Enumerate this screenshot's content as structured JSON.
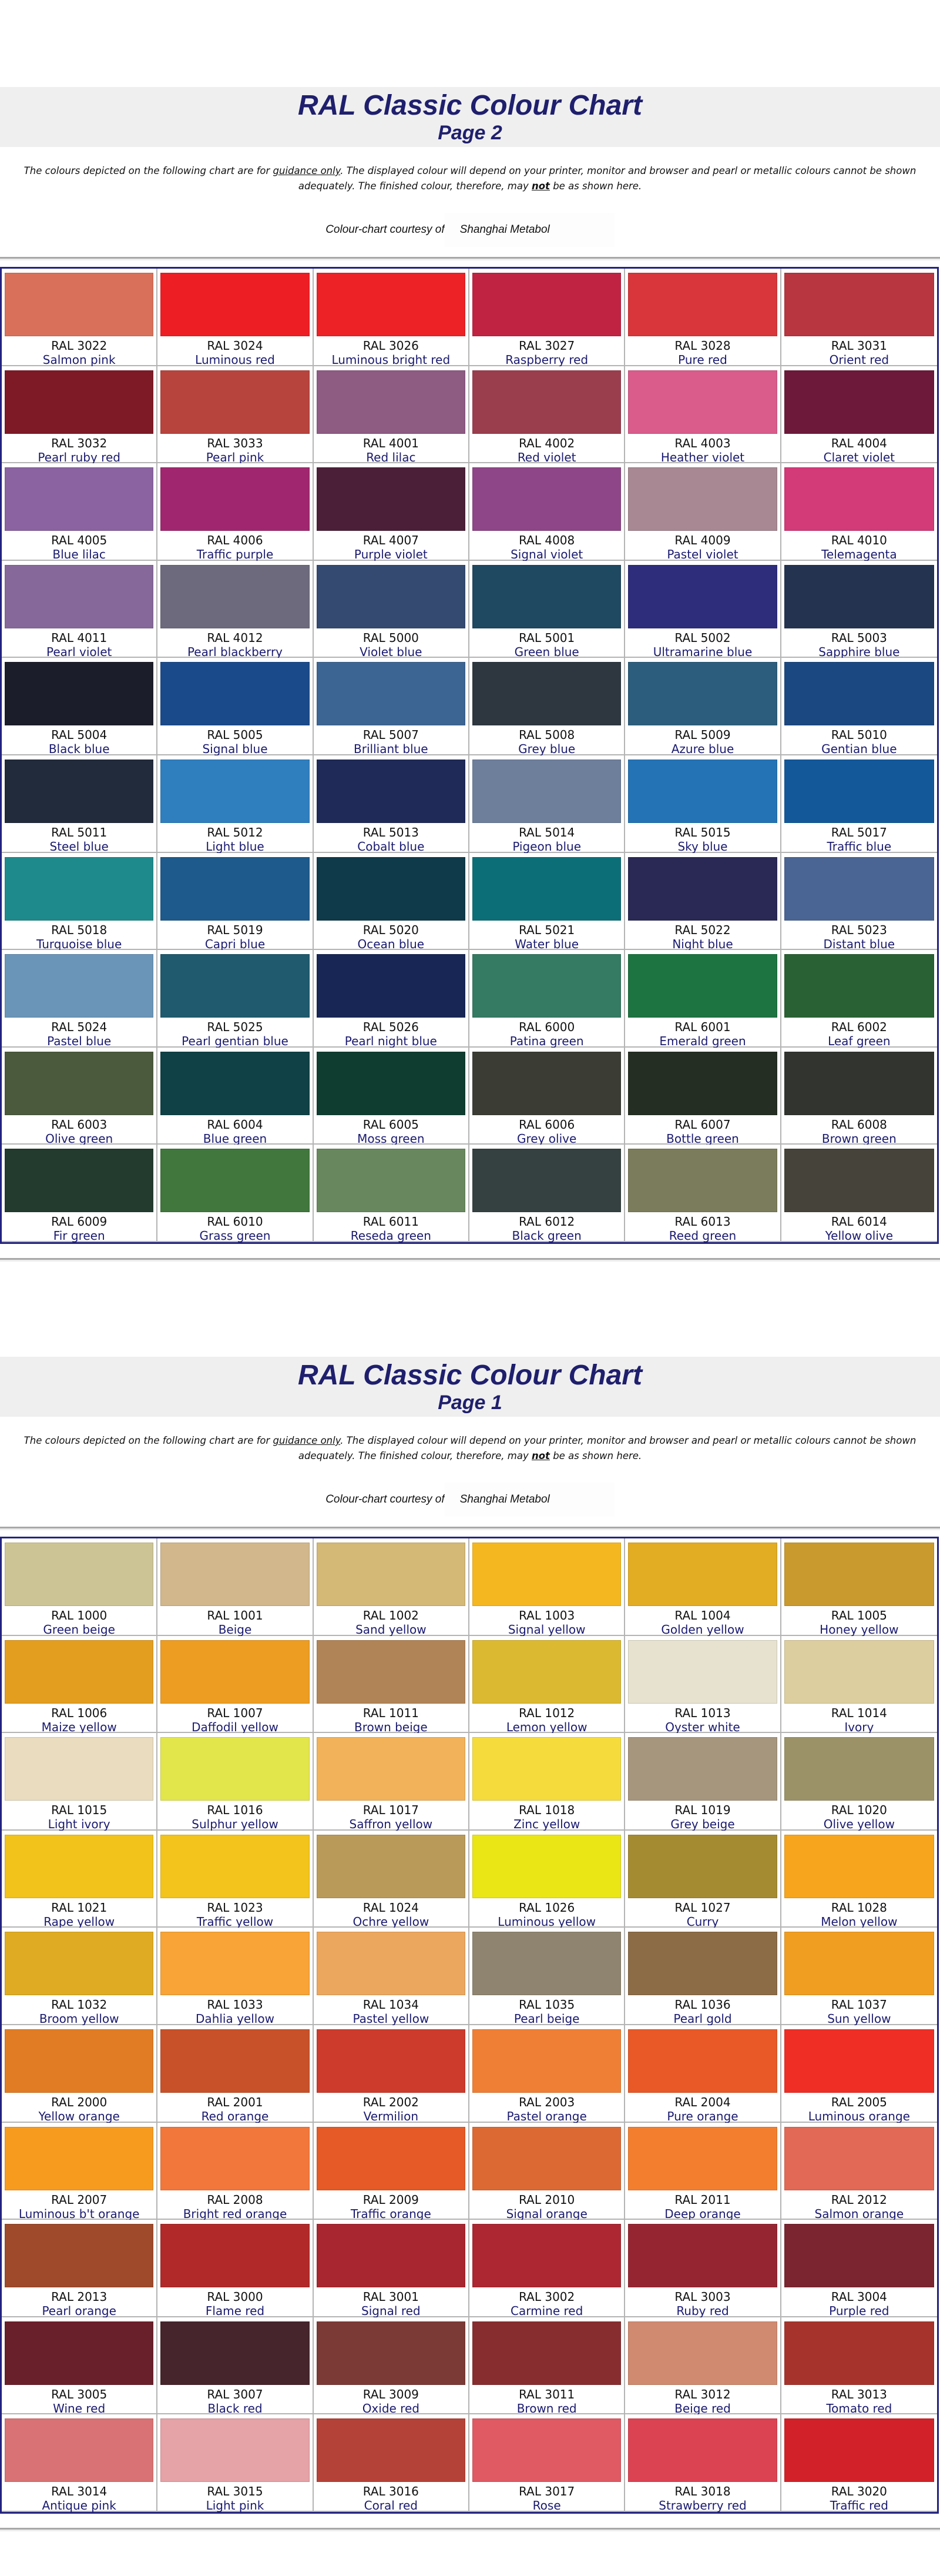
{
  "sections": [
    {
      "title": "RAL Classic Colour Chart",
      "page": "Page 2",
      "disclaimer": {
        "part1": "The colours depicted on the following chart are for ",
        "underlined": "guidance only",
        "part2": ". The displayed colour will depend on your printer, monitor and browser and pearl or metallic colours cannot be shown adequately. The finished colour, therefore, may ",
        "emphasis": "not",
        "part3": " be as shown here."
      },
      "courtesy_label": "Colour-chart courtesy of",
      "courtesy_company": "Shanghai Metabol",
      "colours": [
        {
          "code": "RAL 3022",
          "name": "Salmon pink",
          "hex": "#d9705a"
        },
        {
          "code": "RAL 3024",
          "name": "Luminous red",
          "hex": "#ee1e25"
        },
        {
          "code": "RAL 3026",
          "name": "Luminous bright red",
          "hex": "#ec2226"
        },
        {
          "code": "RAL 3027",
          "name": "Raspberry red",
          "hex": "#c02342"
        },
        {
          "code": "RAL 3028",
          "name": "Pure red",
          "hex": "#d8363a"
        },
        {
          "code": "RAL 3031",
          "name": "Orient red",
          "hex": "#b73640"
        },
        {
          "code": "RAL 3032",
          "name": "Pearl ruby red",
          "hex": "#7e1a26"
        },
        {
          "code": "RAL 3033",
          "name": "Pearl pink",
          "hex": "#b8443e"
        },
        {
          "code": "RAL 4001",
          "name": "Red lilac",
          "hex": "#8e5b83"
        },
        {
          "code": "RAL 4002",
          "name": "Red violet",
          "hex": "#9a3e4e"
        },
        {
          "code": "RAL 4003",
          "name": "Heather violet",
          "hex": "#d95c8a"
        },
        {
          "code": "RAL 4004",
          "name": "Claret violet",
          "hex": "#6d1a3a"
        },
        {
          "code": "RAL 4005",
          "name": "Blue lilac",
          "hex": "#8b63a0"
        },
        {
          "code": "RAL 4006",
          "name": "Traffic purple",
          "hex": "#a0276f"
        },
        {
          "code": "RAL 4007",
          "name": "Purple violet",
          "hex": "#4c1f38"
        },
        {
          "code": "RAL 4008",
          "name": "Signal violet",
          "hex": "#8f4688"
        },
        {
          "code": "RAL 4009",
          "name": "Pastel violet",
          "hex": "#a78893"
        },
        {
          "code": "RAL 4010",
          "name": "Telemagenta",
          "hex": "#d23a78"
        },
        {
          "code": "RAL 4011",
          "name": "Pearl violet",
          "hex": "#86689a"
        },
        {
          "code": "RAL 4012",
          "name": "Pearl blackberry",
          "hex": "#6c6a7c"
        },
        {
          "code": "RAL 5000",
          "name": "Violet blue",
          "hex": "#344a70"
        },
        {
          "code": "RAL 5001",
          "name": "Green blue",
          "hex": "#1f4861"
        },
        {
          "code": "RAL 5002",
          "name": "Ultramarine blue",
          "hex": "#2e2d7c"
        },
        {
          "code": "RAL 5003",
          "name": "Sapphire blue",
          "hex": "#243350"
        },
        {
          "code": "RAL 5004",
          "name": "Black blue",
          "hex": "#1c1d2a"
        },
        {
          "code": "RAL 5005",
          "name": "Signal blue",
          "hex": "#1b4a8a"
        },
        {
          "code": "RAL 5007",
          "name": "Brilliant blue",
          "hex": "#3d6593"
        },
        {
          "code": "RAL 5008",
          "name": "Grey blue",
          "hex": "#2e3740"
        },
        {
          "code": "RAL 5009",
          "name": "Azure blue",
          "hex": "#2c5d7c"
        },
        {
          "code": "RAL 5010",
          "name": "Gentian blue",
          "hex": "#1c4882"
        },
        {
          "code": "RAL 5011",
          "name": "Steel blue",
          "hex": "#222b3c"
        },
        {
          "code": "RAL 5012",
          "name": "Light blue",
          "hex": "#2f7fbf"
        },
        {
          "code": "RAL 5013",
          "name": "Cobalt blue",
          "hex": "#1f2a58"
        },
        {
          "code": "RAL 5014",
          "name": "Pigeon blue",
          "hex": "#6d7f9b"
        },
        {
          "code": "RAL 5015",
          "name": "Sky blue",
          "hex": "#2473b5"
        },
        {
          "code": "RAL 5017",
          "name": "Traffic blue",
          "hex": "#13599a"
        },
        {
          "code": "RAL 5018",
          "name": "Turquoise blue",
          "hex": "#1f8a8c"
        },
        {
          "code": "RAL 5019",
          "name": "Capri blue",
          "hex": "#1e5a8b"
        },
        {
          "code": "RAL 5020",
          "name": "Ocean blue",
          "hex": "#0f3a4a"
        },
        {
          "code": "RAL 5021",
          "name": "Water blue",
          "hex": "#0c6f78"
        },
        {
          "code": "RAL 5022",
          "name": "Night blue",
          "hex": "#2a2955"
        },
        {
          "code": "RAL 5023",
          "name": "Distant blue",
          "hex": "#4a6593"
        },
        {
          "code": "RAL 5024",
          "name": "Pastel blue",
          "hex": "#6a95b8"
        },
        {
          "code": "RAL 5025",
          "name": "Pearl gentian blue",
          "hex": "#1f5a6e"
        },
        {
          "code": "RAL 5026",
          "name": "Pearl night blue",
          "hex": "#172655"
        },
        {
          "code": "RAL 6000",
          "name": "Patina green",
          "hex": "#357a62"
        },
        {
          "code": "RAL 6001",
          "name": "Emerald green",
          "hex": "#1d7440"
        },
        {
          "code": "RAL 6002",
          "name": "Leaf green",
          "hex": "#2a6134"
        },
        {
          "code": "RAL 6003",
          "name": "Olive green",
          "hex": "#4b5a3d"
        },
        {
          "code": "RAL 6004",
          "name": "Blue green",
          "hex": "#0f4146"
        },
        {
          "code": "RAL 6005",
          "name": "Moss green",
          "hex": "#0f3e30"
        },
        {
          "code": "RAL 6006",
          "name": "Grey olive",
          "hex": "#3b3d35"
        },
        {
          "code": "RAL 6007",
          "name": "Bottle green",
          "hex": "#252e22"
        },
        {
          "code": "RAL 6008",
          "name": "Brown green",
          "hex": "#32352f"
        },
        {
          "code": "RAL 6009",
          "name": "Fir green",
          "hex": "#233b2e"
        },
        {
          "code": "RAL 6010",
          "name": "Grass green",
          "hex": "#41773d"
        },
        {
          "code": "RAL 6011",
          "name": "Reseda green",
          "hex": "#68875e"
        },
        {
          "code": "RAL 6012",
          "name": "Black green",
          "hex": "#354140"
        },
        {
          "code": "RAL 6013",
          "name": "Reed green",
          "hex": "#7b7c5b"
        },
        {
          "code": "RAL 6014",
          "name": "Yellow olive",
          "hex": "#46443a"
        }
      ]
    },
    {
      "title": "RAL Classic Colour Chart",
      "page": "Page 1",
      "disclaimer": {
        "part1": "The colours depicted on the following chart are for ",
        "underlined": "guidance only",
        "part2": ". The displayed colour will depend on your printer, monitor and browser and pearl or metallic colours cannot be shown adequately. The finished colour, therefore, may ",
        "emphasis": "not",
        "part3": " be as shown here."
      },
      "courtesy_label": "Colour-chart courtesy of",
      "courtesy_company": "Shanghai Metabol",
      "colours": [
        {
          "code": "RAL 1000",
          "name": "Green beige",
          "hex": "#cdc495"
        },
        {
          "code": "RAL 1001",
          "name": "Beige",
          "hex": "#d1b78b"
        },
        {
          "code": "RAL 1002",
          "name": "Sand yellow",
          "hex": "#d3b876"
        },
        {
          "code": "RAL 1003",
          "name": "Signal yellow",
          "hex": "#f5b71f"
        },
        {
          "code": "RAL 1004",
          "name": "Golden yellow",
          "hex": "#e2ac23"
        },
        {
          "code": "RAL 1005",
          "name": "Honey yellow",
          "hex": "#c99a2e"
        },
        {
          "code": "RAL 1006",
          "name": "Maize yellow",
          "hex": "#e39e20"
        },
        {
          "code": "RAL 1007",
          "name": "Daffodil yellow",
          "hex": "#ec9d22"
        },
        {
          "code": "RAL 1011",
          "name": "Brown beige",
          "hex": "#b08457"
        },
        {
          "code": "RAL 1012",
          "name": "Lemon yellow",
          "hex": "#dbb930"
        },
        {
          "code": "RAL 1013",
          "name": "Oyster white",
          "hex": "#e6e2cf"
        },
        {
          "code": "RAL 1014",
          "name": "Ivory",
          "hex": "#dcce9f"
        },
        {
          "code": "RAL 1015",
          "name": "Light ivory",
          "hex": "#e9dcbf"
        },
        {
          "code": "RAL 1016",
          "name": "Sulphur yellow",
          "hex": "#e3e64b"
        },
        {
          "code": "RAL 1017",
          "name": "Saffron yellow",
          "hex": "#f2b25a"
        },
        {
          "code": "RAL 1018",
          "name": "Zinc yellow",
          "hex": "#f5dc3c"
        },
        {
          "code": "RAL 1019",
          "name": "Grey beige",
          "hex": "#a5967d"
        },
        {
          "code": "RAL 1020",
          "name": "Olive yellow",
          "hex": "#9c9268"
        },
        {
          "code": "RAL 1021",
          "name": "Rape yellow",
          "hex": "#f1c31b"
        },
        {
          "code": "RAL 1023",
          "name": "Traffic yellow",
          "hex": "#f2c41c"
        },
        {
          "code": "RAL 1024",
          "name": "Ochre yellow",
          "hex": "#b99a59"
        },
        {
          "code": "RAL 1026",
          "name": "Luminous yellow",
          "hex": "#eae515"
        },
        {
          "code": "RAL 1027",
          "name": "Curry",
          "hex": "#a48b32"
        },
        {
          "code": "RAL 1028",
          "name": "Melon yellow",
          "hex": "#f7a51c"
        },
        {
          "code": "RAL 1032",
          "name": "Broom yellow",
          "hex": "#dfab22"
        },
        {
          "code": "RAL 1033",
          "name": "Dahlia yellow",
          "hex": "#f8a436"
        },
        {
          "code": "RAL 1034",
          "name": "Pastel yellow",
          "hex": "#eca75e"
        },
        {
          "code": "RAL 1035",
          "name": "Pearl beige",
          "hex": "#8f8470"
        },
        {
          "code": "RAL 1036",
          "name": "Pearl gold",
          "hex": "#8b6c47"
        },
        {
          "code": "RAL 1037",
          "name": "Sun yellow",
          "hex": "#f09e22"
        },
        {
          "code": "RAL 2000",
          "name": "Yellow orange",
          "hex": "#e17c24"
        },
        {
          "code": "RAL 2001",
          "name": "Red orange",
          "hex": "#c8512a"
        },
        {
          "code": "RAL 2002",
          "name": "Vermilion",
          "hex": "#cd3b2d"
        },
        {
          "code": "RAL 2003",
          "name": "Pastel orange",
          "hex": "#f07f36"
        },
        {
          "code": "RAL 2004",
          "name": "Pure orange",
          "hex": "#e85927"
        },
        {
          "code": "RAL 2005",
          "name": "Luminous orange",
          "hex": "#ef2e26"
        },
        {
          "code": "RAL 2007",
          "name": "Luminous b't orange",
          "hex": "#f79b1f"
        },
        {
          "code": "RAL 2008",
          "name": "Bright red orange",
          "hex": "#f2773a"
        },
        {
          "code": "RAL 2009",
          "name": "Traffic orange",
          "hex": "#e55a26"
        },
        {
          "code": "RAL 2010",
          "name": "Signal orange",
          "hex": "#dc6933"
        },
        {
          "code": "RAL 2011",
          "name": "Deep orange",
          "hex": "#f37f2e"
        },
        {
          "code": "RAL 2012",
          "name": "Salmon orange",
          "hex": "#e26955"
        },
        {
          "code": "RAL 2013",
          "name": "Pearl orange",
          "hex": "#9e4a2b"
        },
        {
          "code": "RAL 3000",
          "name": "Flame red",
          "hex": "#b12a29"
        },
        {
          "code": "RAL 3001",
          "name": "Signal red",
          "hex": "#a8262f"
        },
        {
          "code": "RAL 3002",
          "name": "Carmine red",
          "hex": "#ac2731"
        },
        {
          "code": "RAL 3003",
          "name": "Ruby red",
          "hex": "#962532"
        },
        {
          "code": "RAL 3004",
          "name": "Purple red",
          "hex": "#7a2530"
        },
        {
          "code": "RAL 3005",
          "name": "Wine red",
          "hex": "#6a202a"
        },
        {
          "code": "RAL 3007",
          "name": "Black red",
          "hex": "#46252c"
        },
        {
          "code": "RAL 3009",
          "name": "Oxide red",
          "hex": "#7b3a36"
        },
        {
          "code": "RAL 3011",
          "name": "Brown red",
          "hex": "#882d2f"
        },
        {
          "code": "RAL 3012",
          "name": "Beige red",
          "hex": "#d08a70"
        },
        {
          "code": "RAL 3013",
          "name": "Tomato red",
          "hex": "#a6342c"
        },
        {
          "code": "RAL 3014",
          "name": "Antique pink",
          "hex": "#d87274"
        },
        {
          "code": "RAL 3015",
          "name": "Light pink",
          "hex": "#e5a2a7"
        },
        {
          "code": "RAL 3016",
          "name": "Coral red",
          "hex": "#b54238"
        },
        {
          "code": "RAL 3017",
          "name": "Rose",
          "hex": "#df5a63"
        },
        {
          "code": "RAL 3018",
          "name": "Strawberry red",
          "hex": "#dc4352"
        },
        {
          "code": "RAL 3020",
          "name": "Traffic red",
          "hex": "#d22128"
        }
      ]
    }
  ]
}
